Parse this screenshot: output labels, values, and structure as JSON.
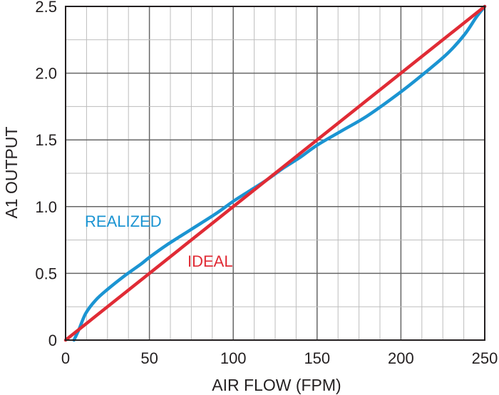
{
  "chart_data": {
    "type": "line",
    "title": "",
    "xlabel": "AIR FLOW (FPM)",
    "ylabel": "A1 OUTPUT",
    "xlim": [
      0,
      250
    ],
    "ylim": [
      0,
      2.5
    ],
    "x_ticks": [
      "0",
      "50",
      "100",
      "150",
      "200",
      "250"
    ],
    "y_ticks": [
      "0",
      "0.5",
      "1.0",
      "1.5",
      "2.0",
      "2.5"
    ],
    "grid": true,
    "series": [
      {
        "name": "REALIZED",
        "color": "#1b94d2",
        "points": [
          [
            5,
            0
          ],
          [
            8,
            0.08
          ],
          [
            12,
            0.2
          ],
          [
            18,
            0.3
          ],
          [
            25,
            0.38
          ],
          [
            35,
            0.48
          ],
          [
            45,
            0.57
          ],
          [
            50,
            0.62
          ],
          [
            60,
            0.71
          ],
          [
            75,
            0.83
          ],
          [
            90,
            0.95
          ],
          [
            100,
            1.04
          ],
          [
            110,
            1.12
          ],
          [
            120,
            1.2
          ],
          [
            130,
            1.29
          ],
          [
            140,
            1.37
          ],
          [
            150,
            1.46
          ],
          [
            165,
            1.57
          ],
          [
            180,
            1.68
          ],
          [
            200,
            1.86
          ],
          [
            215,
            2.01
          ],
          [
            228,
            2.15
          ],
          [
            238,
            2.29
          ],
          [
            245,
            2.42
          ],
          [
            250,
            2.5
          ]
        ]
      },
      {
        "name": "IDEAL",
        "color": "#e02b35",
        "points": [
          [
            0,
            0
          ],
          [
            250,
            2.5
          ]
        ]
      }
    ]
  }
}
